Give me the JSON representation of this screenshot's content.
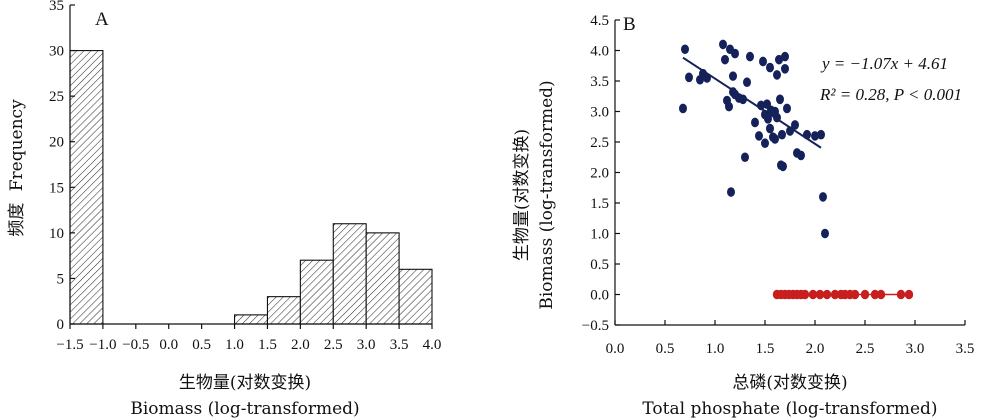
{
  "chart_data": [
    {
      "type": "bar",
      "panel_label": "A",
      "ylabel_cn": "频度",
      "ylabel_en": "Frequency",
      "xlabel_cn": "生物量(对数变换)",
      "xlabel_en": "Biomass  (log-transformed)",
      "xlim": [
        -1.5,
        4.0
      ],
      "ylim": [
        0,
        35
      ],
      "x_ticks": [
        "−1.5",
        "−1.0",
        "−0.5",
        "0.0",
        "0.5",
        "1.0",
        "1.5",
        "2.0",
        "2.5",
        "3.0",
        "3.5",
        "4.0"
      ],
      "x_tick_values": [
        -1.5,
        -1.0,
        -0.5,
        0.0,
        0.5,
        1.0,
        1.5,
        2.0,
        2.5,
        3.0,
        3.5,
        4.0
      ],
      "y_ticks": [
        "0",
        "5",
        "10",
        "15",
        "20",
        "25",
        "30",
        "35"
      ],
      "y_tick_values": [
        0,
        5,
        10,
        15,
        20,
        25,
        30,
        35
      ],
      "bins": [
        {
          "from": -1.5,
          "to": -1.0,
          "count": 30
        },
        {
          "from": 1.0,
          "to": 1.5,
          "count": 1
        },
        {
          "from": 1.5,
          "to": 2.0,
          "count": 3
        },
        {
          "from": 2.0,
          "to": 2.5,
          "count": 7
        },
        {
          "from": 2.5,
          "to": 3.0,
          "count": 11
        },
        {
          "from": 3.0,
          "to": 3.5,
          "count": 10
        },
        {
          "from": 3.5,
          "to": 4.0,
          "count": 6
        }
      ],
      "bar_pattern": "diagonal-hatch"
    },
    {
      "type": "scatter",
      "panel_label": "B",
      "ylabel_cn": "生物量(对数变换)",
      "ylabel_en": "Biomass  (log-transformed)",
      "xlabel_cn": "总磷(对数变换)",
      "xlabel_en": "Total phosphate  (log-transformed)",
      "xlim": [
        0.0,
        3.5
      ],
      "ylim": [
        -0.5,
        4.5
      ],
      "x_ticks": [
        "0.0",
        "0.5",
        "1.0",
        "1.5",
        "2.0",
        "2.5",
        "3.0",
        "3.5"
      ],
      "x_tick_values": [
        0.0,
        0.5,
        1.0,
        1.5,
        2.0,
        2.5,
        3.0,
        3.5
      ],
      "y_ticks": [
        "−0.5",
        "0.0",
        "0.5",
        "1.0",
        "1.5",
        "2.0",
        "2.5",
        "3.0",
        "3.5",
        "4.0",
        "4.5"
      ],
      "y_tick_values": [
        -0.5,
        0.0,
        0.5,
        1.0,
        1.5,
        2.0,
        2.5,
        3.0,
        3.5,
        4.0,
        4.5
      ],
      "equation": "y = −1.07x + 4.61",
      "stats": "R² = 0.28, P < 0.001",
      "colors": {
        "blue": "#15225a",
        "red": "#c81e1e"
      },
      "blue_points": [
        [
          0.68,
          3.05
        ],
        [
          0.7,
          4.02
        ],
        [
          0.74,
          3.56
        ],
        [
          0.85,
          3.52
        ],
        [
          0.88,
          3.62
        ],
        [
          0.92,
          3.55
        ],
        [
          1.08,
          4.1
        ],
        [
          1.1,
          3.85
        ],
        [
          1.12,
          3.18
        ],
        [
          1.14,
          3.08
        ],
        [
          1.15,
          4.02
        ],
        [
          1.16,
          1.68
        ],
        [
          1.18,
          3.32
        ],
        [
          1.18,
          3.58
        ],
        [
          1.2,
          3.28
        ],
        [
          1.2,
          3.95
        ],
        [
          1.24,
          3.22
        ],
        [
          1.28,
          3.2
        ],
        [
          1.3,
          2.25
        ],
        [
          1.32,
          3.48
        ],
        [
          1.35,
          3.9
        ],
        [
          1.4,
          2.82
        ],
        [
          1.44,
          2.6
        ],
        [
          1.46,
          3.1
        ],
        [
          1.48,
          3.82
        ],
        [
          1.5,
          2.95
        ],
        [
          1.5,
          2.48
        ],
        [
          1.52,
          3.12
        ],
        [
          1.53,
          2.88
        ],
        [
          1.55,
          3.72
        ],
        [
          1.55,
          2.72
        ],
        [
          1.56,
          3.02
        ],
        [
          1.58,
          2.58
        ],
        [
          1.6,
          3.0
        ],
        [
          1.6,
          2.55
        ],
        [
          1.62,
          3.6
        ],
        [
          1.62,
          2.9
        ],
        [
          1.64,
          3.85
        ],
        [
          1.65,
          3.2
        ],
        [
          1.66,
          2.12
        ],
        [
          1.67,
          2.62
        ],
        [
          1.68,
          2.1
        ],
        [
          1.7,
          3.7
        ],
        [
          1.7,
          3.9
        ],
        [
          1.72,
          3.05
        ],
        [
          1.75,
          2.68
        ],
        [
          1.8,
          2.78
        ],
        [
          1.82,
          2.32
        ],
        [
          1.86,
          2.28
        ],
        [
          1.92,
          2.62
        ],
        [
          2.0,
          2.6
        ],
        [
          2.06,
          2.62
        ],
        [
          2.08,
          1.6
        ],
        [
          2.1,
          1.0
        ]
      ],
      "red_points": [
        [
          1.62,
          0
        ],
        [
          1.66,
          0
        ],
        [
          1.7,
          0
        ],
        [
          1.74,
          0
        ],
        [
          1.78,
          0
        ],
        [
          1.82,
          0
        ],
        [
          1.86,
          0
        ],
        [
          1.9,
          0
        ],
        [
          1.98,
          0
        ],
        [
          2.05,
          0
        ],
        [
          2.12,
          0
        ],
        [
          2.2,
          0
        ],
        [
          2.26,
          0
        ],
        [
          2.3,
          0
        ],
        [
          2.35,
          0
        ],
        [
          2.4,
          0
        ],
        [
          2.5,
          0
        ],
        [
          2.6,
          0
        ],
        [
          2.66,
          0
        ],
        [
          2.86,
          0
        ],
        [
          2.94,
          0
        ]
      ],
      "red_line": [
        [
          1.62,
          0
        ],
        [
          2.94,
          0
        ]
      ],
      "regression": {
        "slope": -1.07,
        "intercept": 4.61,
        "x_range": [
          0.68,
          2.06
        ]
      }
    }
  ]
}
